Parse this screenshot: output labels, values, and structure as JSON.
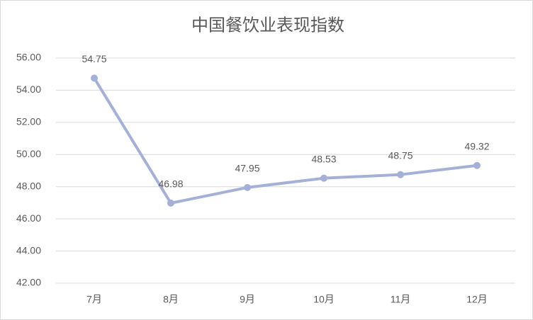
{
  "chart_data": {
    "type": "line",
    "title": "中国餐饮业表现指数",
    "categories": [
      "7月",
      "8月",
      "9月",
      "10月",
      "11月",
      "12月"
    ],
    "series": [
      {
        "color": "#a5b0d8",
        "values": [
          54.75,
          46.98,
          47.95,
          48.53,
          48.75,
          49.32
        ]
      }
    ],
    "ylim": [
      42,
      56
    ],
    "yticks": [
      {
        "value": 42,
        "label": "42.00"
      },
      {
        "value": 44,
        "label": "44.00"
      },
      {
        "value": 46,
        "label": "46.00"
      },
      {
        "value": 48,
        "label": "48.00"
      },
      {
        "value": 50,
        "label": "50.00"
      },
      {
        "value": 52,
        "label": "52.00"
      },
      {
        "value": 54,
        "label": "54.00"
      },
      {
        "value": 56,
        "label": "56.00"
      }
    ],
    "grid": true
  }
}
